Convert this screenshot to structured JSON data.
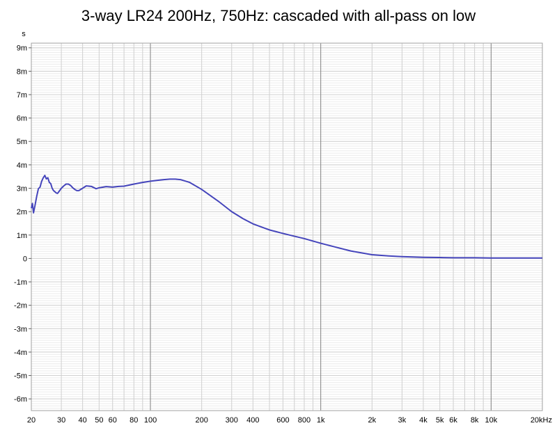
{
  "chart_data": {
    "type": "line",
    "title": "3-way LR24 200Hz, 750Hz: cascaded with all-pass on low",
    "xlabel": "",
    "ylabel": "s",
    "xscale": "log",
    "xlim": [
      20,
      20000
    ],
    "ylim": [
      -0.0065,
      0.0092
    ],
    "grid": true,
    "x_ticks": [
      {
        "value": 20,
        "label": "20"
      },
      {
        "value": 30,
        "label": "30"
      },
      {
        "value": 40,
        "label": "40"
      },
      {
        "value": 50,
        "label": "50"
      },
      {
        "value": 60,
        "label": "60"
      },
      {
        "value": 80,
        "label": "80"
      },
      {
        "value": 100,
        "label": "100"
      },
      {
        "value": 200,
        "label": "200"
      },
      {
        "value": 300,
        "label": "300"
      },
      {
        "value": 400,
        "label": "400"
      },
      {
        "value": 600,
        "label": "600"
      },
      {
        "value": 800,
        "label": "800"
      },
      {
        "value": 1000,
        "label": "1k"
      },
      {
        "value": 2000,
        "label": "2k"
      },
      {
        "value": 3000,
        "label": "3k"
      },
      {
        "value": 4000,
        "label": "4k"
      },
      {
        "value": 5000,
        "label": "5k"
      },
      {
        "value": 6000,
        "label": "6k"
      },
      {
        "value": 8000,
        "label": "8k"
      },
      {
        "value": 10000,
        "label": "10k"
      },
      {
        "value": 20000,
        "label": "20kHz"
      }
    ],
    "y_ticks": [
      {
        "value": 0.009,
        "label": "9m"
      },
      {
        "value": 0.008,
        "label": "8m"
      },
      {
        "value": 0.007,
        "label": "7m"
      },
      {
        "value": 0.006,
        "label": "6m"
      },
      {
        "value": 0.005,
        "label": "5m"
      },
      {
        "value": 0.004,
        "label": "4m"
      },
      {
        "value": 0.003,
        "label": "3m"
      },
      {
        "value": 0.002,
        "label": "2m"
      },
      {
        "value": 0.001,
        "label": "1m"
      },
      {
        "value": 0,
        "label": "0"
      },
      {
        "value": -0.001,
        "label": "-1m"
      },
      {
        "value": -0.002,
        "label": "-2m"
      },
      {
        "value": -0.003,
        "label": "-3m"
      },
      {
        "value": -0.004,
        "label": "-4m"
      },
      {
        "value": -0.005,
        "label": "-5m"
      },
      {
        "value": -0.006,
        "label": "-6m"
      }
    ],
    "series": [
      {
        "color": "#4444bb",
        "x": [
          20,
          20.3,
          20.6,
          21,
          21.5,
          22,
          22.5,
          23,
          23.5,
          24,
          24.5,
          25,
          25.5,
          26,
          26.5,
          27,
          27.5,
          28,
          28.5,
          29,
          30,
          31,
          32,
          33,
          34,
          35,
          36,
          37,
          38,
          40,
          42,
          45,
          48,
          50,
          55,
          60,
          65,
          70,
          80,
          90,
          100,
          110,
          120,
          130,
          140,
          150,
          170,
          200,
          250,
          300,
          350,
          400,
          500,
          600,
          700,
          800,
          1000,
          1200,
          1500,
          2000,
          2500,
          3000,
          4000,
          5000,
          6000,
          8000,
          10000,
          15000,
          20000
        ],
        "y": [
          0.00215,
          0.00235,
          0.00195,
          0.00225,
          0.00265,
          0.00298,
          0.00305,
          0.0033,
          0.00345,
          0.00355,
          0.0034,
          0.00345,
          0.00325,
          0.0032,
          0.003,
          0.0029,
          0.00285,
          0.0028,
          0.00278,
          0.00285,
          0.003,
          0.0031,
          0.00318,
          0.00318,
          0.00312,
          0.00302,
          0.00295,
          0.0029,
          0.0029,
          0.003,
          0.0031,
          0.00308,
          0.00298,
          0.00302,
          0.00307,
          0.00305,
          0.00308,
          0.00309,
          0.00318,
          0.00325,
          0.0033,
          0.00334,
          0.00337,
          0.00339,
          0.00339,
          0.00337,
          0.00325,
          0.00295,
          0.00245,
          0.002,
          0.0017,
          0.00148,
          0.00122,
          0.00107,
          0.00095,
          0.00085,
          0.00065,
          0.0005,
          0.00032,
          0.00016,
          0.00011,
          8e-05,
          5e-05,
          4e-05,
          3e-05,
          3e-05,
          2e-05,
          2e-05,
          2e-05
        ]
      }
    ]
  }
}
